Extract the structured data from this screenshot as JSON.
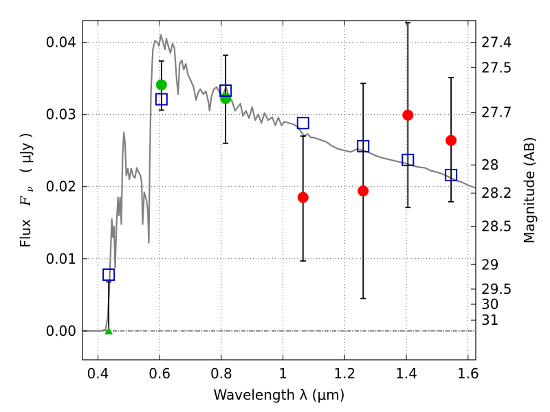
{
  "chart_data": {
    "type": "scatter",
    "xlabel": "Wavelength  λ (μm)",
    "ylabel_left": {
      "prefix": "Flux  ",
      "symbol": "F",
      "sub": "ν",
      "unit": "  ( μJy )"
    },
    "ylabel_right": "Magnitude (AB)",
    "xlim": [
      0.35,
      1.625
    ],
    "ylim": [
      -0.004,
      0.043
    ],
    "x_ticks": [
      {
        "value": 0.4,
        "label": "0.4"
      },
      {
        "value": 0.6,
        "label": "0.6"
      },
      {
        "value": 0.8,
        "label": "0.8"
      },
      {
        "value": 1.0,
        "label": "1"
      },
      {
        "value": 1.2,
        "label": "1.2"
      },
      {
        "value": 1.4,
        "label": "1.4"
      },
      {
        "value": 1.6,
        "label": "1.6"
      }
    ],
    "y_ticks": [
      {
        "value": 0.0,
        "label": "0.00"
      },
      {
        "value": 0.01,
        "label": "0.01"
      },
      {
        "value": 0.02,
        "label": "0.02"
      },
      {
        "value": 0.03,
        "label": "0.03"
      },
      {
        "value": 0.04,
        "label": "0.04"
      }
    ],
    "magnitude_ticks": [
      {
        "flux": 0.04,
        "label": "27.4"
      },
      {
        "flux": 0.0365,
        "label": "27.5"
      },
      {
        "flux": 0.0303,
        "label": "27.7"
      },
      {
        "flux": 0.023,
        "label": "28"
      },
      {
        "flux": 0.0191,
        "label": "28.2"
      },
      {
        "flux": 0.0145,
        "label": "28.5"
      },
      {
        "flux": 0.0092,
        "label": "29"
      },
      {
        "flux": 0.0058,
        "label": "29.5"
      },
      {
        "flux": 0.0037,
        "label": "30"
      },
      {
        "flux": 0.0015,
        "label": "31"
      }
    ],
    "grid": true,
    "colors": {
      "model": "#808080",
      "observed": "#ff0000",
      "optical": "#00bb00",
      "synthetic": "#0000bb",
      "errorbar": "#000000"
    },
    "series": [
      {
        "kind": "model_spectrum",
        "points": [
          [
            0.35,
            0.0
          ],
          [
            0.41,
            0.0
          ],
          [
            0.425,
            0.0002
          ],
          [
            0.432,
            0.002
          ],
          [
            0.437,
            0.006
          ],
          [
            0.442,
            0.012
          ],
          [
            0.445,
            0.0155
          ],
          [
            0.448,
            0.013
          ],
          [
            0.452,
            0.0145
          ],
          [
            0.456,
            0.0088
          ],
          [
            0.46,
            0.0145
          ],
          [
            0.465,
            0.0185
          ],
          [
            0.468,
            0.016
          ],
          [
            0.472,
            0.0185
          ],
          [
            0.476,
            0.0148
          ],
          [
            0.48,
            0.024
          ],
          [
            0.484,
            0.0275
          ],
          [
            0.488,
            0.026
          ],
          [
            0.492,
            0.0215
          ],
          [
            0.497,
            0.0225
          ],
          [
            0.502,
            0.021
          ],
          [
            0.508,
            0.0225
          ],
          [
            0.514,
            0.0215
          ],
          [
            0.52,
            0.0212
          ],
          [
            0.526,
            0.0226
          ],
          [
            0.532,
            0.022
          ],
          [
            0.538,
            0.0215
          ],
          [
            0.542,
            0.0205
          ],
          [
            0.545,
            0.0148
          ],
          [
            0.55,
            0.0192
          ],
          [
            0.555,
            0.0185
          ],
          [
            0.558,
            0.018
          ],
          [
            0.562,
            0.0165
          ],
          [
            0.565,
            0.0122
          ],
          [
            0.568,
            0.023
          ],
          [
            0.572,
            0.033
          ],
          [
            0.578,
            0.039
          ],
          [
            0.585,
            0.0402
          ],
          [
            0.592,
            0.04
          ],
          [
            0.598,
            0.0395
          ],
          [
            0.604,
            0.041
          ],
          [
            0.61,
            0.0402
          ],
          [
            0.617,
            0.039
          ],
          [
            0.622,
            0.0405
          ],
          [
            0.628,
            0.0395
          ],
          [
            0.635,
            0.0385
          ],
          [
            0.642,
            0.0398
          ],
          [
            0.648,
            0.0392
          ],
          [
            0.655,
            0.035
          ],
          [
            0.66,
            0.0328
          ],
          [
            0.665,
            0.037
          ],
          [
            0.672,
            0.0375
          ],
          [
            0.678,
            0.0362
          ],
          [
            0.685,
            0.037
          ],
          [
            0.692,
            0.0355
          ],
          [
            0.7,
            0.0348
          ],
          [
            0.71,
            0.0338
          ],
          [
            0.718,
            0.032
          ],
          [
            0.725,
            0.033
          ],
          [
            0.732,
            0.0335
          ],
          [
            0.742,
            0.0328
          ],
          [
            0.75,
            0.0332
          ],
          [
            0.758,
            0.0318
          ],
          [
            0.762,
            0.0305
          ],
          [
            0.768,
            0.0325
          ],
          [
            0.776,
            0.0335
          ],
          [
            0.785,
            0.0338
          ],
          [
            0.795,
            0.033
          ],
          [
            0.805,
            0.0326
          ],
          [
            0.815,
            0.0338
          ],
          [
            0.825,
            0.0325
          ],
          [
            0.835,
            0.0318
          ],
          [
            0.845,
            0.0305
          ],
          [
            0.853,
            0.031
          ],
          [
            0.862,
            0.0315
          ],
          [
            0.87,
            0.0298
          ],
          [
            0.88,
            0.0305
          ],
          [
            0.89,
            0.0295
          ],
          [
            0.9,
            0.031
          ],
          [
            0.91,
            0.0292
          ],
          [
            0.92,
            0.03
          ],
          [
            0.93,
            0.0288
          ],
          [
            0.94,
            0.0302
          ],
          [
            0.952,
            0.0292
          ],
          [
            0.965,
            0.0296
          ],
          [
            0.975,
            0.0285
          ],
          [
            0.985,
            0.0296
          ],
          [
            0.995,
            0.0285
          ],
          [
            1.005,
            0.029
          ],
          [
            1.02,
            0.0288
          ],
          [
            1.035,
            0.0286
          ],
          [
            1.05,
            0.0282
          ],
          [
            1.06,
            0.0275
          ],
          [
            1.07,
            0.027
          ],
          [
            1.08,
            0.0273
          ],
          [
            1.09,
            0.0268
          ],
          [
            1.1,
            0.0268
          ],
          [
            1.12,
            0.0265
          ],
          [
            1.14,
            0.0262
          ],
          [
            1.16,
            0.0256
          ],
          [
            1.18,
            0.0252
          ],
          [
            1.2,
            0.025
          ],
          [
            1.22,
            0.0248
          ],
          [
            1.24,
            0.0252
          ],
          [
            1.26,
            0.025
          ],
          [
            1.28,
            0.0247
          ],
          [
            1.3,
            0.0243
          ],
          [
            1.32,
            0.024
          ],
          [
            1.34,
            0.0238
          ],
          [
            1.36,
            0.0236
          ],
          [
            1.38,
            0.0234
          ],
          [
            1.4,
            0.0232
          ],
          [
            1.42,
            0.0229
          ],
          [
            1.44,
            0.0227
          ],
          [
            1.46,
            0.0226
          ],
          [
            1.48,
            0.0222
          ],
          [
            1.5,
            0.022
          ],
          [
            1.52,
            0.0217
          ],
          [
            1.54,
            0.0213
          ],
          [
            1.56,
            0.0209
          ],
          [
            1.58,
            0.0206
          ],
          [
            1.6,
            0.0202
          ],
          [
            1.625,
            0.0198
          ]
        ]
      },
      {
        "kind": "observed_photometry",
        "points": [
          {
            "x": 1.065,
            "y": 0.0185,
            "err_low": 0.0097,
            "err_high": 0.027
          },
          {
            "x": 1.26,
            "y": 0.0194,
            "err_low": 0.0045,
            "err_high": 0.0343
          },
          {
            "x": 1.405,
            "y": 0.0299,
            "err_low": 0.0171,
            "err_high": 0.0427
          },
          {
            "x": 1.545,
            "y": 0.0264,
            "err_low": 0.0179,
            "err_high": 0.0351
          }
        ]
      },
      {
        "kind": "optical_photometry",
        "points": [
          {
            "x": 0.606,
            "y": 0.0341,
            "err_low": 0.0306,
            "err_high": 0.0374
          },
          {
            "x": 0.814,
            "y": 0.0322,
            "err_low": 0.026,
            "err_high": 0.0382
          }
        ]
      },
      {
        "kind": "optical_upper_limit",
        "points": [
          {
            "x": 0.435,
            "y": 0.0,
            "err_high": 0.0068
          }
        ]
      },
      {
        "kind": "synthetic_photometry",
        "points": [
          {
            "x": 0.435,
            "y": 0.0078
          },
          {
            "x": 0.606,
            "y": 0.0321
          },
          {
            "x": 0.814,
            "y": 0.0333
          },
          {
            "x": 1.065,
            "y": 0.0288
          },
          {
            "x": 1.26,
            "y": 0.0256
          },
          {
            "x": 1.405,
            "y": 0.0237
          },
          {
            "x": 1.545,
            "y": 0.0216
          }
        ]
      }
    ]
  }
}
